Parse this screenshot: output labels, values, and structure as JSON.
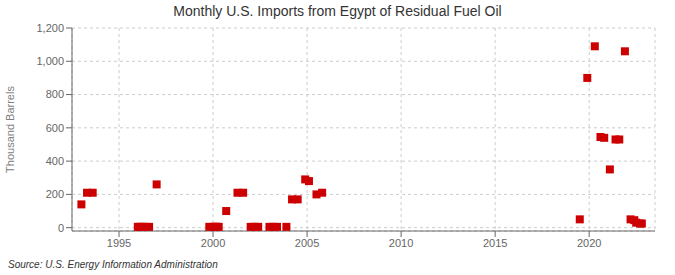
{
  "chart_data": {
    "type": "scatter",
    "title": "Monthly U.S. Imports from Egypt of Residual Fuel Oil",
    "y_label": "Thousand Barrels",
    "annotations": [
      "Source: U.S. Energy Information Administration"
    ],
    "color": "#cc0000",
    "marker": "square",
    "grid": true,
    "xlim": [
      1992.5,
      2023.5
    ],
    "xticks": [
      1995,
      2000,
      2005,
      2010,
      2015,
      2020
    ],
    "ylim": [
      -20,
      1200
    ],
    "yticks": [
      0,
      200,
      400,
      600,
      800,
      {
        "value": 1000,
        "label": "1,000"
      },
      {
        "value": 1200,
        "label": "1,200"
      }
    ],
    "x": [
      1993.0,
      1993.3,
      1993.6,
      1996.0,
      1996.1,
      1996.2,
      1996.4,
      1996.6,
      1997.0,
      1999.8,
      2000.0,
      2000.1,
      2000.2,
      2000.3,
      2000.7,
      2001.3,
      2001.6,
      2002.0,
      2002.2,
      2002.4,
      2003.0,
      2003.2,
      2003.4,
      2003.9,
      2004.2,
      2004.5,
      2004.9,
      2005.1,
      2005.5,
      2005.8,
      2019.5,
      2019.9,
      2020.3,
      2020.6,
      2020.8,
      2021.1,
      2021.4,
      2021.6,
      2021.9,
      2022.2,
      2022.4,
      2022.5,
      2022.7,
      2022.8
    ],
    "values": [
      140,
      210,
      210,
      5,
      5,
      5,
      5,
      5,
      260,
      5,
      5,
      5,
      5,
      5,
      100,
      210,
      210,
      5,
      5,
      5,
      5,
      5,
      5,
      5,
      170,
      170,
      290,
      280,
      200,
      210,
      50,
      900,
      1090,
      545,
      540,
      350,
      530,
      530,
      1060,
      50,
      45,
      30,
      25,
      25
    ]
  }
}
